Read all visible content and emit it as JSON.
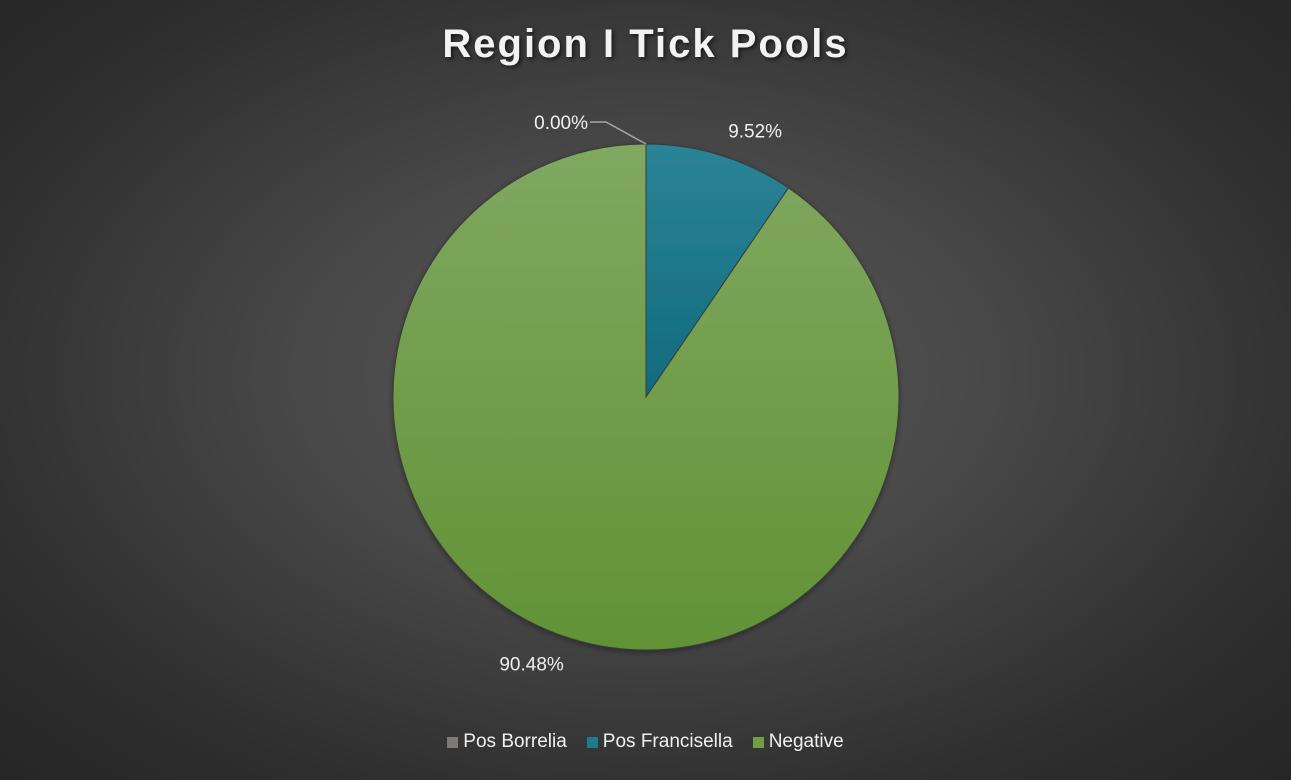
{
  "chart_data": {
    "type": "pie",
    "title": "Region I Tick Pools",
    "categories": [
      "Pos Borrelia",
      "Pos Francisella",
      "Negative"
    ],
    "values": [
      0.0,
      9.52,
      90.48
    ],
    "data_labels": [
      "0.00%",
      "9.52%",
      "90.48%"
    ],
    "colors": [
      "#7f7a78",
      "#1f7a8c",
      "#6f9e46"
    ],
    "legend_position": "bottom"
  }
}
